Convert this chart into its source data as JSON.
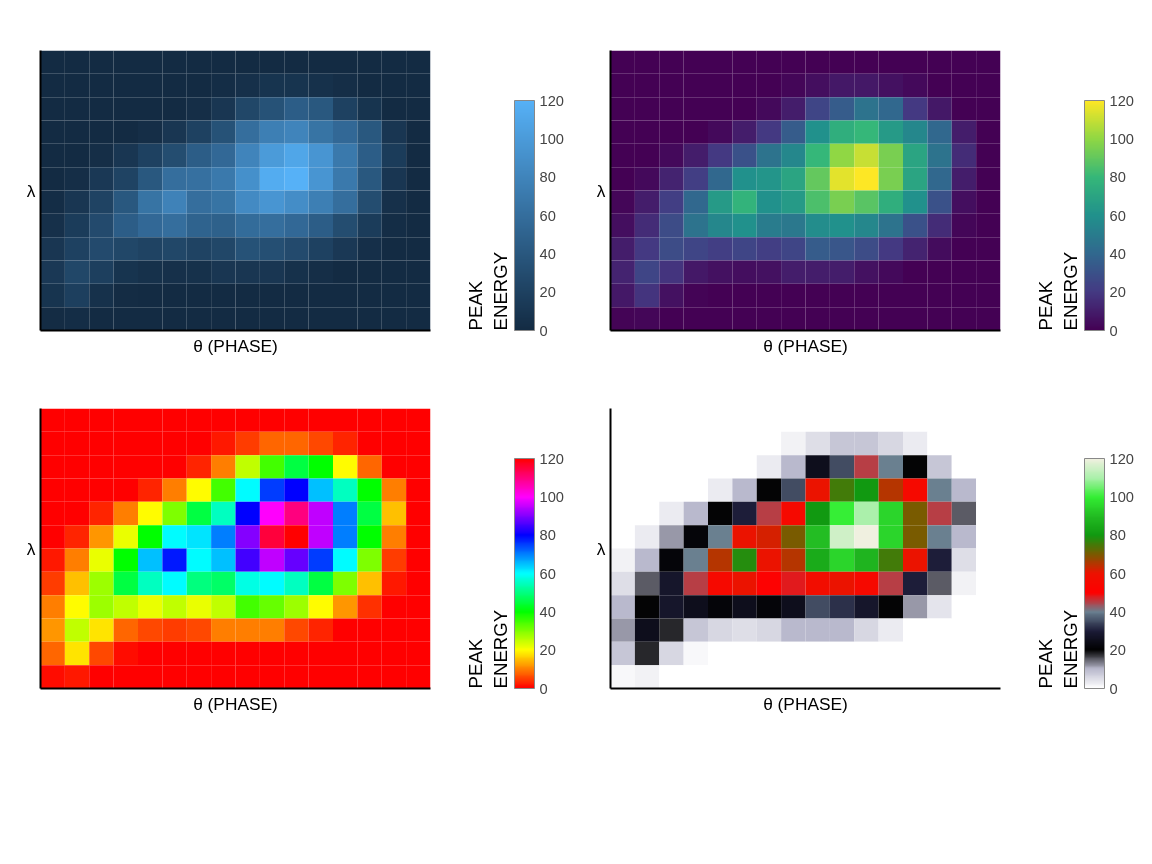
{
  "chart_data": [
    {
      "type": "heatmap",
      "xlabel": "θ (PHASE)",
      "ylabel": "λ",
      "clabel": "PEAK ENERGY",
      "clim": [
        0,
        120
      ],
      "cticks": [
        0,
        20,
        40,
        60,
        80,
        100,
        120
      ],
      "colors": [
        "#132b43",
        "#56b1f7"
      ],
      "categories": [
        null,
        null,
        null,
        null,
        null,
        null,
        null,
        null,
        null,
        null,
        null,
        null,
        null,
        null,
        null,
        null
      ],
      "y_categories": [
        null,
        null,
        null,
        null,
        null,
        null,
        null,
        null,
        null,
        null,
        null,
        null
      ],
      "cells": [
        [
          0,
          0,
          0,
          0,
          0,
          0,
          0,
          0,
          0,
          0,
          0,
          0,
          0,
          0,
          0,
          0
        ],
        [
          0,
          0,
          0,
          0,
          0,
          0,
          0,
          2,
          5,
          8,
          8,
          6,
          3,
          0,
          0,
          0
        ],
        [
          0,
          0,
          0,
          0,
          0,
          0,
          3,
          10,
          25,
          35,
          45,
          40,
          20,
          8,
          0,
          0
        ],
        [
          0,
          0,
          0,
          0,
          3,
          10,
          20,
          35,
          60,
          75,
          80,
          65,
          55,
          40,
          10,
          0
        ],
        [
          0,
          0,
          3,
          10,
          20,
          30,
          45,
          55,
          80,
          100,
          110,
          95,
          70,
          45,
          15,
          0
        ],
        [
          0,
          3,
          12,
          22,
          40,
          60,
          62,
          70,
          90,
          115,
          120,
          95,
          70,
          40,
          10,
          0
        ],
        [
          2,
          10,
          22,
          40,
          65,
          78,
          60,
          65,
          85,
          95,
          88,
          75,
          60,
          30,
          5,
          0
        ],
        [
          5,
          15,
          28,
          45,
          55,
          60,
          50,
          48,
          58,
          60,
          55,
          45,
          30,
          15,
          2,
          0
        ],
        [
          10,
          20,
          28,
          25,
          22,
          25,
          22,
          25,
          35,
          32,
          28,
          20,
          12,
          4,
          0,
          0
        ],
        [
          12,
          25,
          18,
          8,
          6,
          5,
          6,
          10,
          10,
          10,
          6,
          3,
          0,
          0,
          0,
          0
        ],
        [
          8,
          18,
          6,
          1,
          0,
          0,
          0,
          0,
          0,
          0,
          0,
          0,
          0,
          0,
          0,
          0
        ],
        [
          1,
          2,
          0,
          0,
          0,
          0,
          0,
          0,
          0,
          0,
          0,
          0,
          0,
          0,
          0,
          0
        ]
      ]
    },
    {
      "type": "heatmap",
      "xlabel": "θ (PHASE)",
      "ylabel": "λ",
      "clabel": "PEAK ENERGY",
      "clim": [
        0,
        120
      ],
      "cticks": [
        0,
        20,
        40,
        60,
        80,
        100,
        120
      ],
      "colors": [
        "#440154",
        "#443a83",
        "#31688e",
        "#21918c",
        "#35b779",
        "#8fd744",
        "#fde725"
      ],
      "categories": [
        null,
        null,
        null,
        null,
        null,
        null,
        null,
        null,
        null,
        null,
        null,
        null,
        null,
        null,
        null,
        null
      ],
      "y_categories": [
        null,
        null,
        null,
        null,
        null,
        null,
        null,
        null,
        null,
        null,
        null,
        null
      ],
      "cells": [
        [
          0,
          0,
          0,
          0,
          0,
          0,
          0,
          0,
          0,
          0,
          0,
          0,
          0,
          0,
          0,
          0
        ],
        [
          0,
          0,
          0,
          0,
          0,
          0,
          0,
          2,
          5,
          8,
          8,
          6,
          3,
          0,
          0,
          0
        ],
        [
          0,
          0,
          0,
          0,
          0,
          0,
          3,
          10,
          25,
          35,
          45,
          40,
          20,
          8,
          0,
          0
        ],
        [
          0,
          0,
          0,
          0,
          3,
          10,
          20,
          35,
          60,
          75,
          80,
          65,
          55,
          40,
          10,
          0
        ],
        [
          0,
          0,
          3,
          10,
          20,
          30,
          45,
          55,
          80,
          100,
          110,
          95,
          70,
          45,
          15,
          0
        ],
        [
          0,
          3,
          12,
          22,
          40,
          60,
          62,
          70,
          90,
          115,
          120,
          95,
          70,
          40,
          10,
          0
        ],
        [
          2,
          10,
          22,
          40,
          65,
          78,
          60,
          65,
          85,
          95,
          88,
          75,
          60,
          30,
          5,
          0
        ],
        [
          5,
          15,
          28,
          45,
          55,
          60,
          50,
          48,
          58,
          60,
          55,
          45,
          30,
          15,
          2,
          0
        ],
        [
          10,
          20,
          28,
          25,
          22,
          25,
          22,
          25,
          35,
          32,
          28,
          20,
          12,
          4,
          0,
          0
        ],
        [
          12,
          25,
          18,
          8,
          6,
          5,
          6,
          10,
          10,
          10,
          6,
          3,
          0,
          0,
          0,
          0
        ],
        [
          8,
          18,
          6,
          1,
          0,
          0,
          0,
          0,
          0,
          0,
          0,
          0,
          0,
          0,
          0,
          0
        ],
        [
          1,
          2,
          0,
          0,
          0,
          0,
          0,
          0,
          0,
          0,
          0,
          0,
          0,
          0,
          0,
          0
        ]
      ]
    },
    {
      "type": "heatmap",
      "xlabel": "θ (PHASE)",
      "ylabel": "λ",
      "clabel": "PEAK ENERGY",
      "clim": [
        0,
        120
      ],
      "cticks": [
        0,
        20,
        40,
        60,
        80,
        100,
        120
      ],
      "colors": [
        "#ff0000",
        "#ffff00",
        "#00ff00",
        "#00ffff",
        "#0000ff",
        "#ff00ff",
        "#ff0000"
      ],
      "categories": [
        null,
        null,
        null,
        null,
        null,
        null,
        null,
        null,
        null,
        null,
        null,
        null,
        null,
        null,
        null,
        null
      ],
      "y_categories": [
        null,
        null,
        null,
        null,
        null,
        null,
        null,
        null,
        null,
        null,
        null,
        null
      ],
      "cells": [
        [
          0,
          0,
          0,
          0,
          0,
          0,
          0,
          0,
          0,
          0,
          0,
          0,
          0,
          0,
          0,
          0
        ],
        [
          0,
          0,
          0,
          0,
          0,
          0,
          0,
          2,
          5,
          8,
          8,
          6,
          3,
          0,
          0,
          0
        ],
        [
          0,
          0,
          0,
          0,
          0,
          0,
          3,
          10,
          25,
          35,
          45,
          40,
          20,
          8,
          0,
          0
        ],
        [
          0,
          0,
          0,
          0,
          3,
          10,
          20,
          35,
          60,
          75,
          80,
          65,
          55,
          40,
          10,
          0
        ],
        [
          0,
          0,
          3,
          10,
          20,
          30,
          45,
          55,
          80,
          100,
          110,
          95,
          70,
          45,
          15,
          0
        ],
        [
          0,
          3,
          12,
          22,
          40,
          60,
          62,
          70,
          90,
          115,
          120,
          95,
          70,
          40,
          10,
          0
        ],
        [
          2,
          10,
          22,
          40,
          65,
          78,
          60,
          65,
          85,
          95,
          88,
          75,
          60,
          30,
          5,
          0
        ],
        [
          5,
          15,
          28,
          45,
          55,
          60,
          50,
          48,
          58,
          60,
          55,
          45,
          30,
          15,
          2,
          0
        ],
        [
          10,
          20,
          28,
          25,
          22,
          25,
          22,
          25,
          35,
          32,
          28,
          20,
          12,
          4,
          0,
          0
        ],
        [
          12,
          25,
          18,
          8,
          6,
          5,
          6,
          10,
          10,
          10,
          6,
          3,
          0,
          0,
          0,
          0
        ],
        [
          8,
          18,
          6,
          1,
          0,
          0,
          0,
          0,
          0,
          0,
          0,
          0,
          0,
          0,
          0,
          0
        ],
        [
          1,
          2,
          0,
          0,
          0,
          0,
          0,
          0,
          0,
          0,
          0,
          0,
          0,
          0,
          0,
          0
        ]
      ]
    },
    {
      "type": "heatmap",
      "xlabel": "θ (PHASE)",
      "ylabel": "λ",
      "clabel": "PEAK ENERGY",
      "clim": [
        0,
        120
      ],
      "cticks": [
        0,
        20,
        40,
        60,
        80,
        100,
        120
      ],
      "colors": [
        "#ffffff",
        "#b8b8cc",
        "#000000",
        "#1c1c38",
        "#6a8090",
        "#ff0000",
        "#ee1100",
        "#7a5a00",
        "#119911",
        "#22bb22",
        "#33ee33",
        "#aaf0aa",
        "#f0f0e0"
      ],
      "categories": [
        null,
        null,
        null,
        null,
        null,
        null,
        null,
        null,
        null,
        null,
        null,
        null,
        null,
        null,
        null,
        null
      ],
      "y_categories": [
        null,
        null,
        null,
        null,
        null,
        null,
        null,
        null,
        null,
        null,
        null,
        null
      ],
      "cells": [
        [
          0,
          0,
          0,
          0,
          0,
          0,
          0,
          0,
          0,
          0,
          0,
          0,
          0,
          0,
          0,
          0
        ],
        [
          0,
          0,
          0,
          0,
          0,
          0,
          0,
          2,
          5,
          8,
          8,
          6,
          3,
          0,
          0,
          0
        ],
        [
          0,
          0,
          0,
          0,
          0,
          0,
          3,
          10,
          25,
          35,
          45,
          40,
          20,
          8,
          0,
          0
        ],
        [
          0,
          0,
          0,
          0,
          3,
          10,
          20,
          35,
          60,
          75,
          80,
          65,
          55,
          40,
          10,
          0
        ],
        [
          0,
          0,
          3,
          10,
          20,
          30,
          45,
          55,
          80,
          100,
          110,
          95,
          70,
          45,
          15,
          0
        ],
        [
          0,
          3,
          12,
          22,
          40,
          60,
          62,
          70,
          90,
          115,
          120,
          95,
          70,
          40,
          10,
          0
        ],
        [
          2,
          10,
          22,
          40,
          65,
          78,
          60,
          65,
          85,
          95,
          88,
          75,
          60,
          30,
          5,
          0
        ],
        [
          5,
          15,
          28,
          45,
          55,
          60,
          50,
          48,
          58,
          60,
          55,
          45,
          30,
          15,
          2,
          0
        ],
        [
          10,
          20,
          28,
          25,
          22,
          25,
          22,
          25,
          35,
          32,
          28,
          20,
          12,
          4,
          0,
          0
        ],
        [
          12,
          25,
          18,
          8,
          6,
          5,
          6,
          10,
          10,
          10,
          6,
          3,
          0,
          0,
          0,
          0
        ],
        [
          8,
          18,
          6,
          1,
          0,
          0,
          0,
          0,
          0,
          0,
          0,
          0,
          0,
          0,
          0,
          0
        ],
        [
          1,
          2,
          0,
          0,
          0,
          0,
          0,
          0,
          0,
          0,
          0,
          0,
          0,
          0,
          0,
          0
        ]
      ]
    }
  ]
}
